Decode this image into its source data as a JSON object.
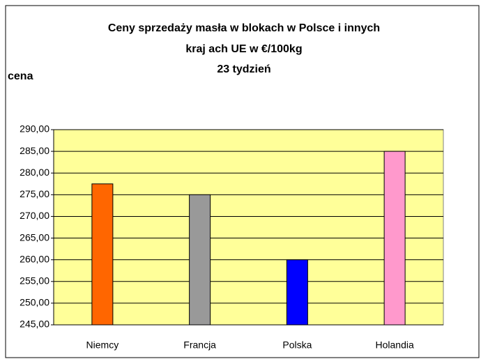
{
  "chart_data": {
    "type": "bar",
    "title": [
      "Ceny sprzedaży masła w blokach w Polsce i  innych",
      "kraj ach UE w €/100kg",
      "23 tydzień"
    ],
    "y_label": "cena",
    "categories": [
      "Niemcy",
      "Francja",
      "Polska",
      "Holandia"
    ],
    "values": [
      277.5,
      275,
      260,
      285
    ],
    "colors": [
      "#ff6600",
      "#999999",
      "#0000ff",
      "#ff99cc"
    ],
    "ylim": [
      245,
      290
    ],
    "yticks": [
      {
        "value": 245,
        "label": "245,00"
      },
      {
        "value": 250,
        "label": "250,00"
      },
      {
        "value": 255,
        "label": "255,00"
      },
      {
        "value": 260,
        "label": "260,00"
      },
      {
        "value": 265,
        "label": "265,00"
      },
      {
        "value": 270,
        "label": "270,00"
      },
      {
        "value": 275,
        "label": "275,00"
      },
      {
        "value": 280,
        "label": "280,00"
      },
      {
        "value": 285,
        "label": "285,00"
      },
      {
        "value": 290,
        "label": "290,00"
      }
    ],
    "grid": true
  }
}
